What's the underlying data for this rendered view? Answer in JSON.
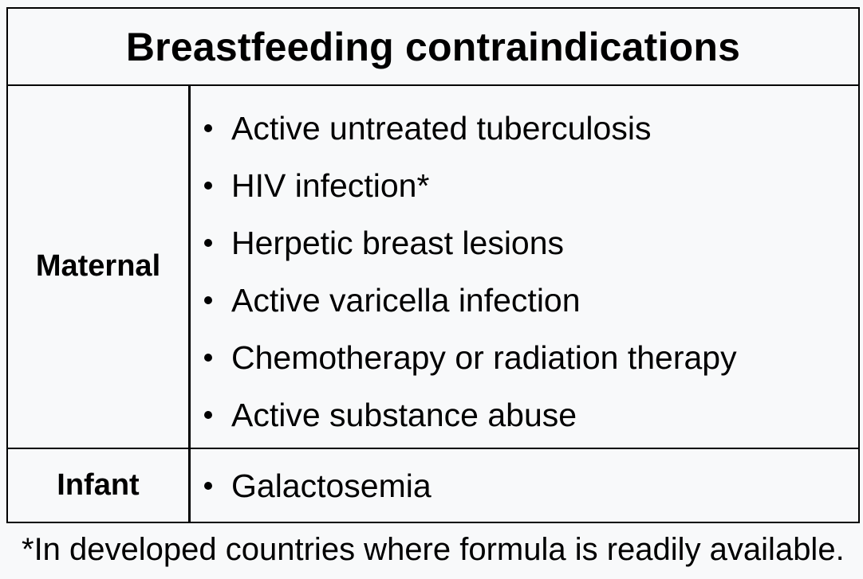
{
  "table": {
    "title": "Breastfeeding contraindications",
    "rows": [
      {
        "label": "Maternal",
        "items": [
          "Active untreated tuberculosis",
          "HIV infection*",
          "Herpetic breast lesions",
          "Active varicella infection",
          "Chemotherapy or radiation therapy",
          "Active substance abuse"
        ]
      },
      {
        "label": "Infant",
        "items": [
          "Galactosemia"
        ]
      }
    ]
  },
  "footnote": "*In developed countries where formula is readily available."
}
